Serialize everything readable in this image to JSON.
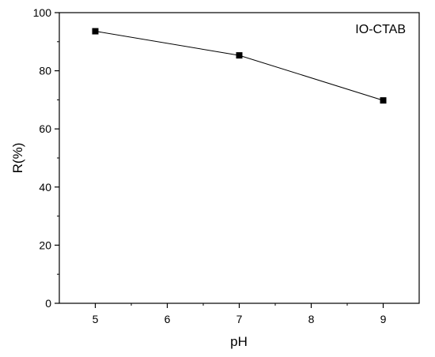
{
  "chart_data": {
    "type": "line",
    "title": "",
    "xlabel": "pH",
    "ylabel": "R(%)",
    "xlim": [
      4.5,
      9.5
    ],
    "ylim": [
      0,
      100
    ],
    "x_ticks_major": [
      5,
      6,
      7,
      8,
      9
    ],
    "y_ticks_major": [
      0,
      20,
      40,
      60,
      80,
      100
    ],
    "grid": false,
    "series": [
      {
        "name": "IO-CTAB",
        "marker": "square",
        "color": "#000000",
        "x": [
          5,
          7,
          9
        ],
        "y": [
          93.6,
          85.3,
          69.8
        ]
      }
    ]
  }
}
